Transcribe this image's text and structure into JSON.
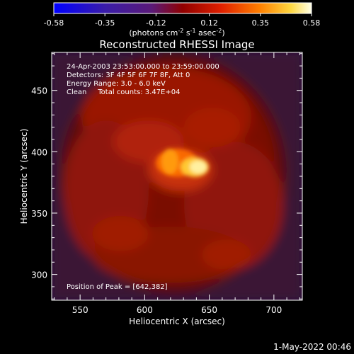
{
  "colorbar": {
    "tick_labels": [
      "-0.58",
      "-0.35",
      "-0.12",
      "0.12",
      "0.35",
      "0.58"
    ],
    "unit_main": "(photons cm",
    "unit_sup1": "-2",
    "unit_mid": " s",
    "unit_sup2": "-1",
    "unit_tail": " asec",
    "unit_sup3": "-2",
    "unit_close": ")",
    "range": [
      -0.58,
      0.58
    ]
  },
  "chart_data": {
    "type": "heatmap",
    "title": "Reconstructed RHESSI Image",
    "xlabel": "Heliocentric X (arcsec)",
    "ylabel": "Heliocentric Y (arcsec)",
    "xlim": [
      528,
      722
    ],
    "ylim": [
      279,
      481
    ],
    "x_ticks": [
      550,
      600,
      650,
      700
    ],
    "y_ticks": [
      300,
      350,
      400,
      450
    ],
    "peak": [
      642,
      382
    ],
    "annotations": [
      "24-Apr-2003 23:53:00.000 to 23:59:00.000",
      "Detectors: 3F 4F 5F 6F 7F 8F, Att 0",
      "Energy Range: 3.0 - 6.0 keV",
      "Clean     Total counts: 3.47E+04"
    ],
    "peak_label": "Position of Peak = [642,382]"
  },
  "footer": {
    "timestamp": "1-May-2022 00:46"
  }
}
